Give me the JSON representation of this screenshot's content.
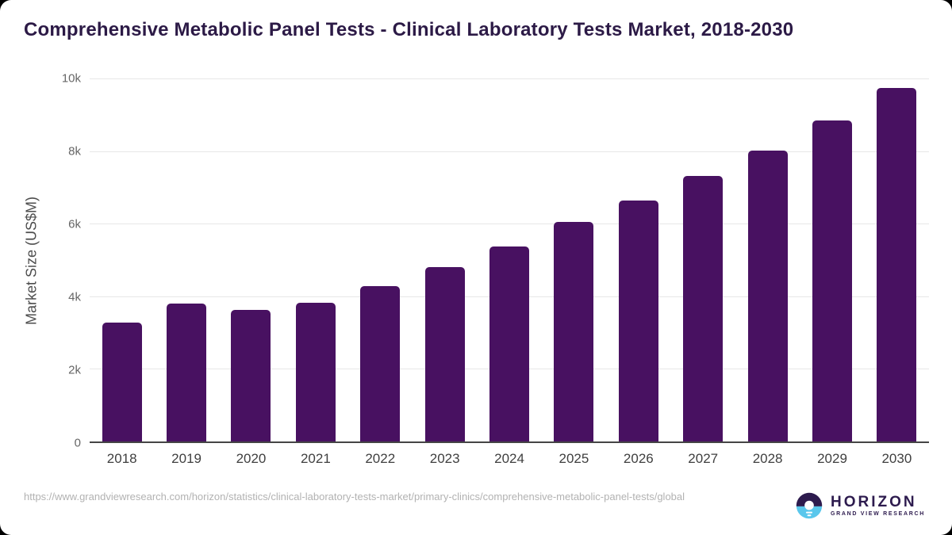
{
  "title": "Comprehensive Metabolic Panel Tests - Clinical Laboratory Tests Market, 2018-2030",
  "chart_data": {
    "type": "bar",
    "title": "Comprehensive Metabolic Panel Tests - Clinical Laboratory Tests Market, 2018-2030",
    "categories": [
      "2018",
      "2019",
      "2020",
      "2021",
      "2022",
      "2023",
      "2024",
      "2025",
      "2026",
      "2027",
      "2028",
      "2029",
      "2030"
    ],
    "values": [
      3280,
      3800,
      3620,
      3830,
      4280,
      4810,
      5380,
      6040,
      6630,
      7310,
      8010,
      8850,
      9740
    ],
    "xlabel": "",
    "ylabel": "Market Size (US$M)",
    "ylim": [
      0,
      10000
    ],
    "y_ticks": [
      {
        "label": "10k",
        "value": 10000
      },
      {
        "label": "8k",
        "value": 8000
      },
      {
        "label": "6k",
        "value": 6000
      },
      {
        "label": "4k",
        "value": 4000
      },
      {
        "label": "2k",
        "value": 2000
      },
      {
        "label": "0",
        "value": 0
      }
    ],
    "grid": "horizontal",
    "legend": "none"
  },
  "colors": {
    "bar": "#481161",
    "title": "#2c1a46",
    "axis_line": "#454545",
    "gridline": "#e7e7e7",
    "logo_purple": "#2d1b4e",
    "logo_blue": "#5ac7ec"
  },
  "footer": {
    "source_url": "https://www.grandviewresearch.com/horizon/statistics/clinical-laboratory-tests-market/primary-clinics/comprehensive-metabolic-panel-tests/global",
    "logo": {
      "title": "HORIZON",
      "subtitle": "GRAND VIEW RESEARCH"
    }
  }
}
